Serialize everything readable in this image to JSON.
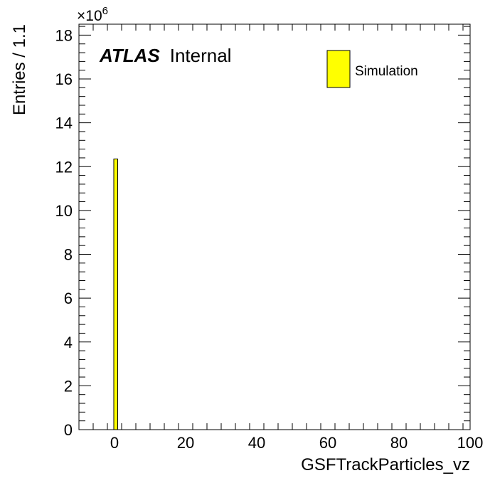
{
  "chart_data": {
    "type": "bar",
    "title": "",
    "xlabel": "GSFTrackParticles_vz",
    "ylabel": "Entries / 1.1",
    "y_multiplier": "×10",
    "y_multiplier_exp": "6",
    "xlim": [
      -10,
      100
    ],
    "ylim": [
      0,
      18.5
    ],
    "x_ticks": [
      0,
      20,
      40,
      60,
      80,
      100
    ],
    "y_ticks": [
      0,
      2,
      4,
      6,
      8,
      10,
      12,
      14,
      16,
      18
    ],
    "bin_width": 1.1,
    "bins": [
      {
        "x_low": -0.2,
        "x_high": 0.9,
        "value": 12.35
      }
    ],
    "fill_color": "#ffff00",
    "grid": false,
    "legend_position": "top-right",
    "legend": [
      {
        "name": "Simulation",
        "color": "#ffff00"
      }
    ]
  },
  "atlas_label": {
    "bold": "ATLAS",
    "text": "Internal"
  }
}
